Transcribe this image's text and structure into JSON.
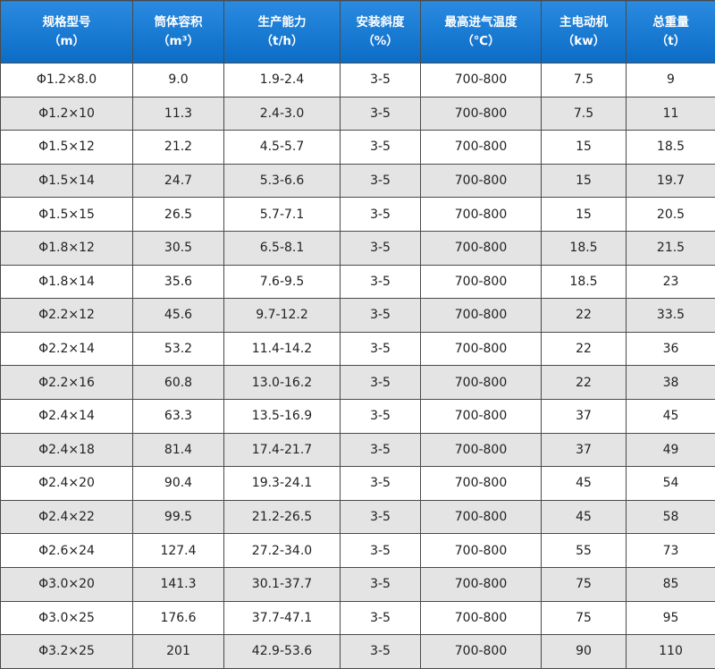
{
  "table": {
    "header": [
      [
        "规格型号",
        "（m）"
      ],
      [
        "筒体容积",
        "（m³）"
      ],
      [
        "生产能力",
        "（t/h）"
      ],
      [
        "安装斜度",
        "（%）"
      ],
      [
        "最高进气温度",
        "（℃）"
      ],
      [
        "主电动机",
        "（kw）"
      ],
      [
        "总重量",
        "（t）"
      ]
    ],
    "rows": [
      [
        "Φ1.2×8.0",
        "9.0",
        "1.9-2.4",
        "3-5",
        "700-800",
        "7.5",
        "9"
      ],
      [
        "Φ1.2×10",
        "11.3",
        "2.4-3.0",
        "3-5",
        "700-800",
        "7.5",
        "11"
      ],
      [
        "Φ1.5×12",
        "21.2",
        "4.5-5.7",
        "3-5",
        "700-800",
        "15",
        "18.5"
      ],
      [
        "Φ1.5×14",
        "24.7",
        "5.3-6.6",
        "3-5",
        "700-800",
        "15",
        "19.7"
      ],
      [
        "Φ1.5×15",
        "26.5",
        "5.7-7.1",
        "3-5",
        "700-800",
        "15",
        "20.5"
      ],
      [
        "Φ1.8×12",
        "30.5",
        "6.5-8.1",
        "3-5",
        "700-800",
        "18.5",
        "21.5"
      ],
      [
        "Φ1.8×14",
        "35.6",
        "7.6-9.5",
        "3-5",
        "700-800",
        "18.5",
        "23"
      ],
      [
        "Φ2.2×12",
        "45.6",
        "9.7-12.2",
        "3-5",
        "700-800",
        "22",
        "33.5"
      ],
      [
        "Φ2.2×14",
        "53.2",
        "11.4-14.2",
        "3-5",
        "700-800",
        "22",
        "36"
      ],
      [
        "Φ2.2×16",
        "60.8",
        "13.0-16.2",
        "3-5",
        "700-800",
        "22",
        "38"
      ],
      [
        "Φ2.4×14",
        "63.3",
        "13.5-16.9",
        "3-5",
        "700-800",
        "37",
        "45"
      ],
      [
        "Φ2.4×18",
        "81.4",
        "17.4-21.7",
        "3-5",
        "700-800",
        "37",
        "49"
      ],
      [
        "Φ2.4×20",
        "90.4",
        "19.3-24.1",
        "3-5",
        "700-800",
        "45",
        "54"
      ],
      [
        "Φ2.4×22",
        "99.5",
        "21.2-26.5",
        "3-5",
        "700-800",
        "45",
        "58"
      ],
      [
        "Φ2.6×24",
        "127.4",
        "27.2-34.0",
        "3-5",
        "700-800",
        "55",
        "73"
      ],
      [
        "Φ3.0×20",
        "141.3",
        "30.1-37.7",
        "3-5",
        "700-800",
        "75",
        "85"
      ],
      [
        "Φ3.0×25",
        "176.6",
        "37.7-47.1",
        "3-5",
        "700-800",
        "75",
        "95"
      ],
      [
        "Φ3.2×25",
        "201",
        "42.9-53.6",
        "3-5",
        "700-800",
        "90",
        "110"
      ]
    ]
  }
}
